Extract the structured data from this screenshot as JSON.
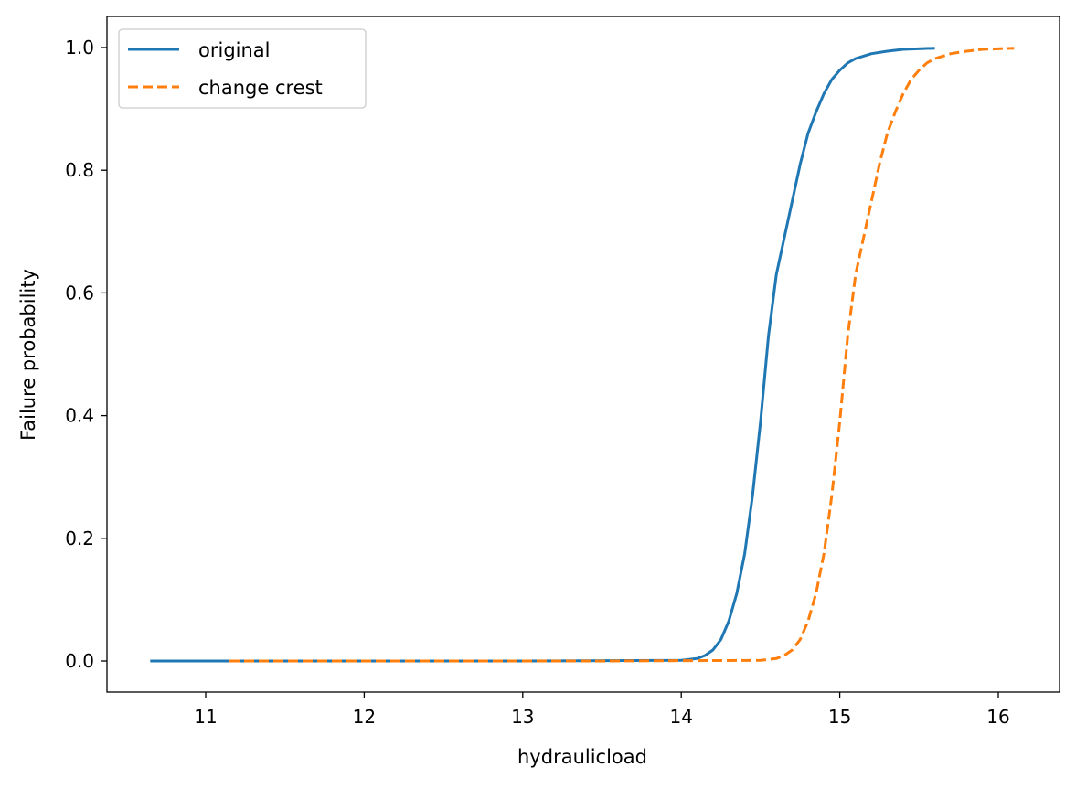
{
  "chart_data": {
    "type": "line",
    "title": "",
    "xlabel": "hydraulicload",
    "ylabel": "Failure probability",
    "xlim": [
      10.4,
      16.38
    ],
    "ylim": [
      -0.05,
      1.05
    ],
    "xticks": [
      11,
      12,
      13,
      14,
      15,
      16
    ],
    "xtick_labels": [
      "11",
      "12",
      "13",
      "14",
      "15",
      "16"
    ],
    "yticks": [
      0,
      0.2,
      0.4,
      0.6,
      0.8,
      1.0
    ],
    "ytick_labels": [
      "0.0",
      "0.2",
      "0.4",
      "0.6",
      "0.8",
      "1.0"
    ],
    "grid": false,
    "legend_position": "top-left",
    "series": [
      {
        "name": "original",
        "color": "#1f77b4",
        "style": "solid",
        "x": [
          10.65,
          12,
          13,
          14.0,
          14.1,
          14.15,
          14.2,
          14.25,
          14.3,
          14.35,
          14.4,
          14.45,
          14.5,
          14.55,
          14.6,
          14.65,
          14.7,
          14.75,
          14.8,
          14.85,
          14.9,
          14.95,
          15.0,
          15.05,
          15.1,
          15.2,
          15.3,
          15.4,
          15.6
        ],
        "y": [
          0,
          0,
          0,
          0.001,
          0.004,
          0.009,
          0.018,
          0.035,
          0.065,
          0.11,
          0.175,
          0.27,
          0.39,
          0.53,
          0.63,
          0.69,
          0.75,
          0.81,
          0.86,
          0.895,
          0.925,
          0.948,
          0.963,
          0.975,
          0.982,
          0.99,
          0.994,
          0.997,
          0.999
        ]
      },
      {
        "name": "change crest",
        "color": "#ff7f0e",
        "style": "dashed",
        "x": [
          11.15,
          12.5,
          13.5,
          14.5,
          14.6,
          14.65,
          14.7,
          14.75,
          14.8,
          14.85,
          14.9,
          14.95,
          15.0,
          15.05,
          15.1,
          15.15,
          15.2,
          15.25,
          15.3,
          15.35,
          15.4,
          15.45,
          15.5,
          15.55,
          15.6,
          15.7,
          15.8,
          15.9,
          16.1
        ],
        "y": [
          0,
          0,
          0,
          0.001,
          0.004,
          0.009,
          0.018,
          0.035,
          0.065,
          0.11,
          0.175,
          0.27,
          0.39,
          0.53,
          0.63,
          0.69,
          0.75,
          0.81,
          0.86,
          0.895,
          0.925,
          0.948,
          0.963,
          0.975,
          0.982,
          0.99,
          0.994,
          0.997,
          0.999
        ]
      }
    ]
  }
}
